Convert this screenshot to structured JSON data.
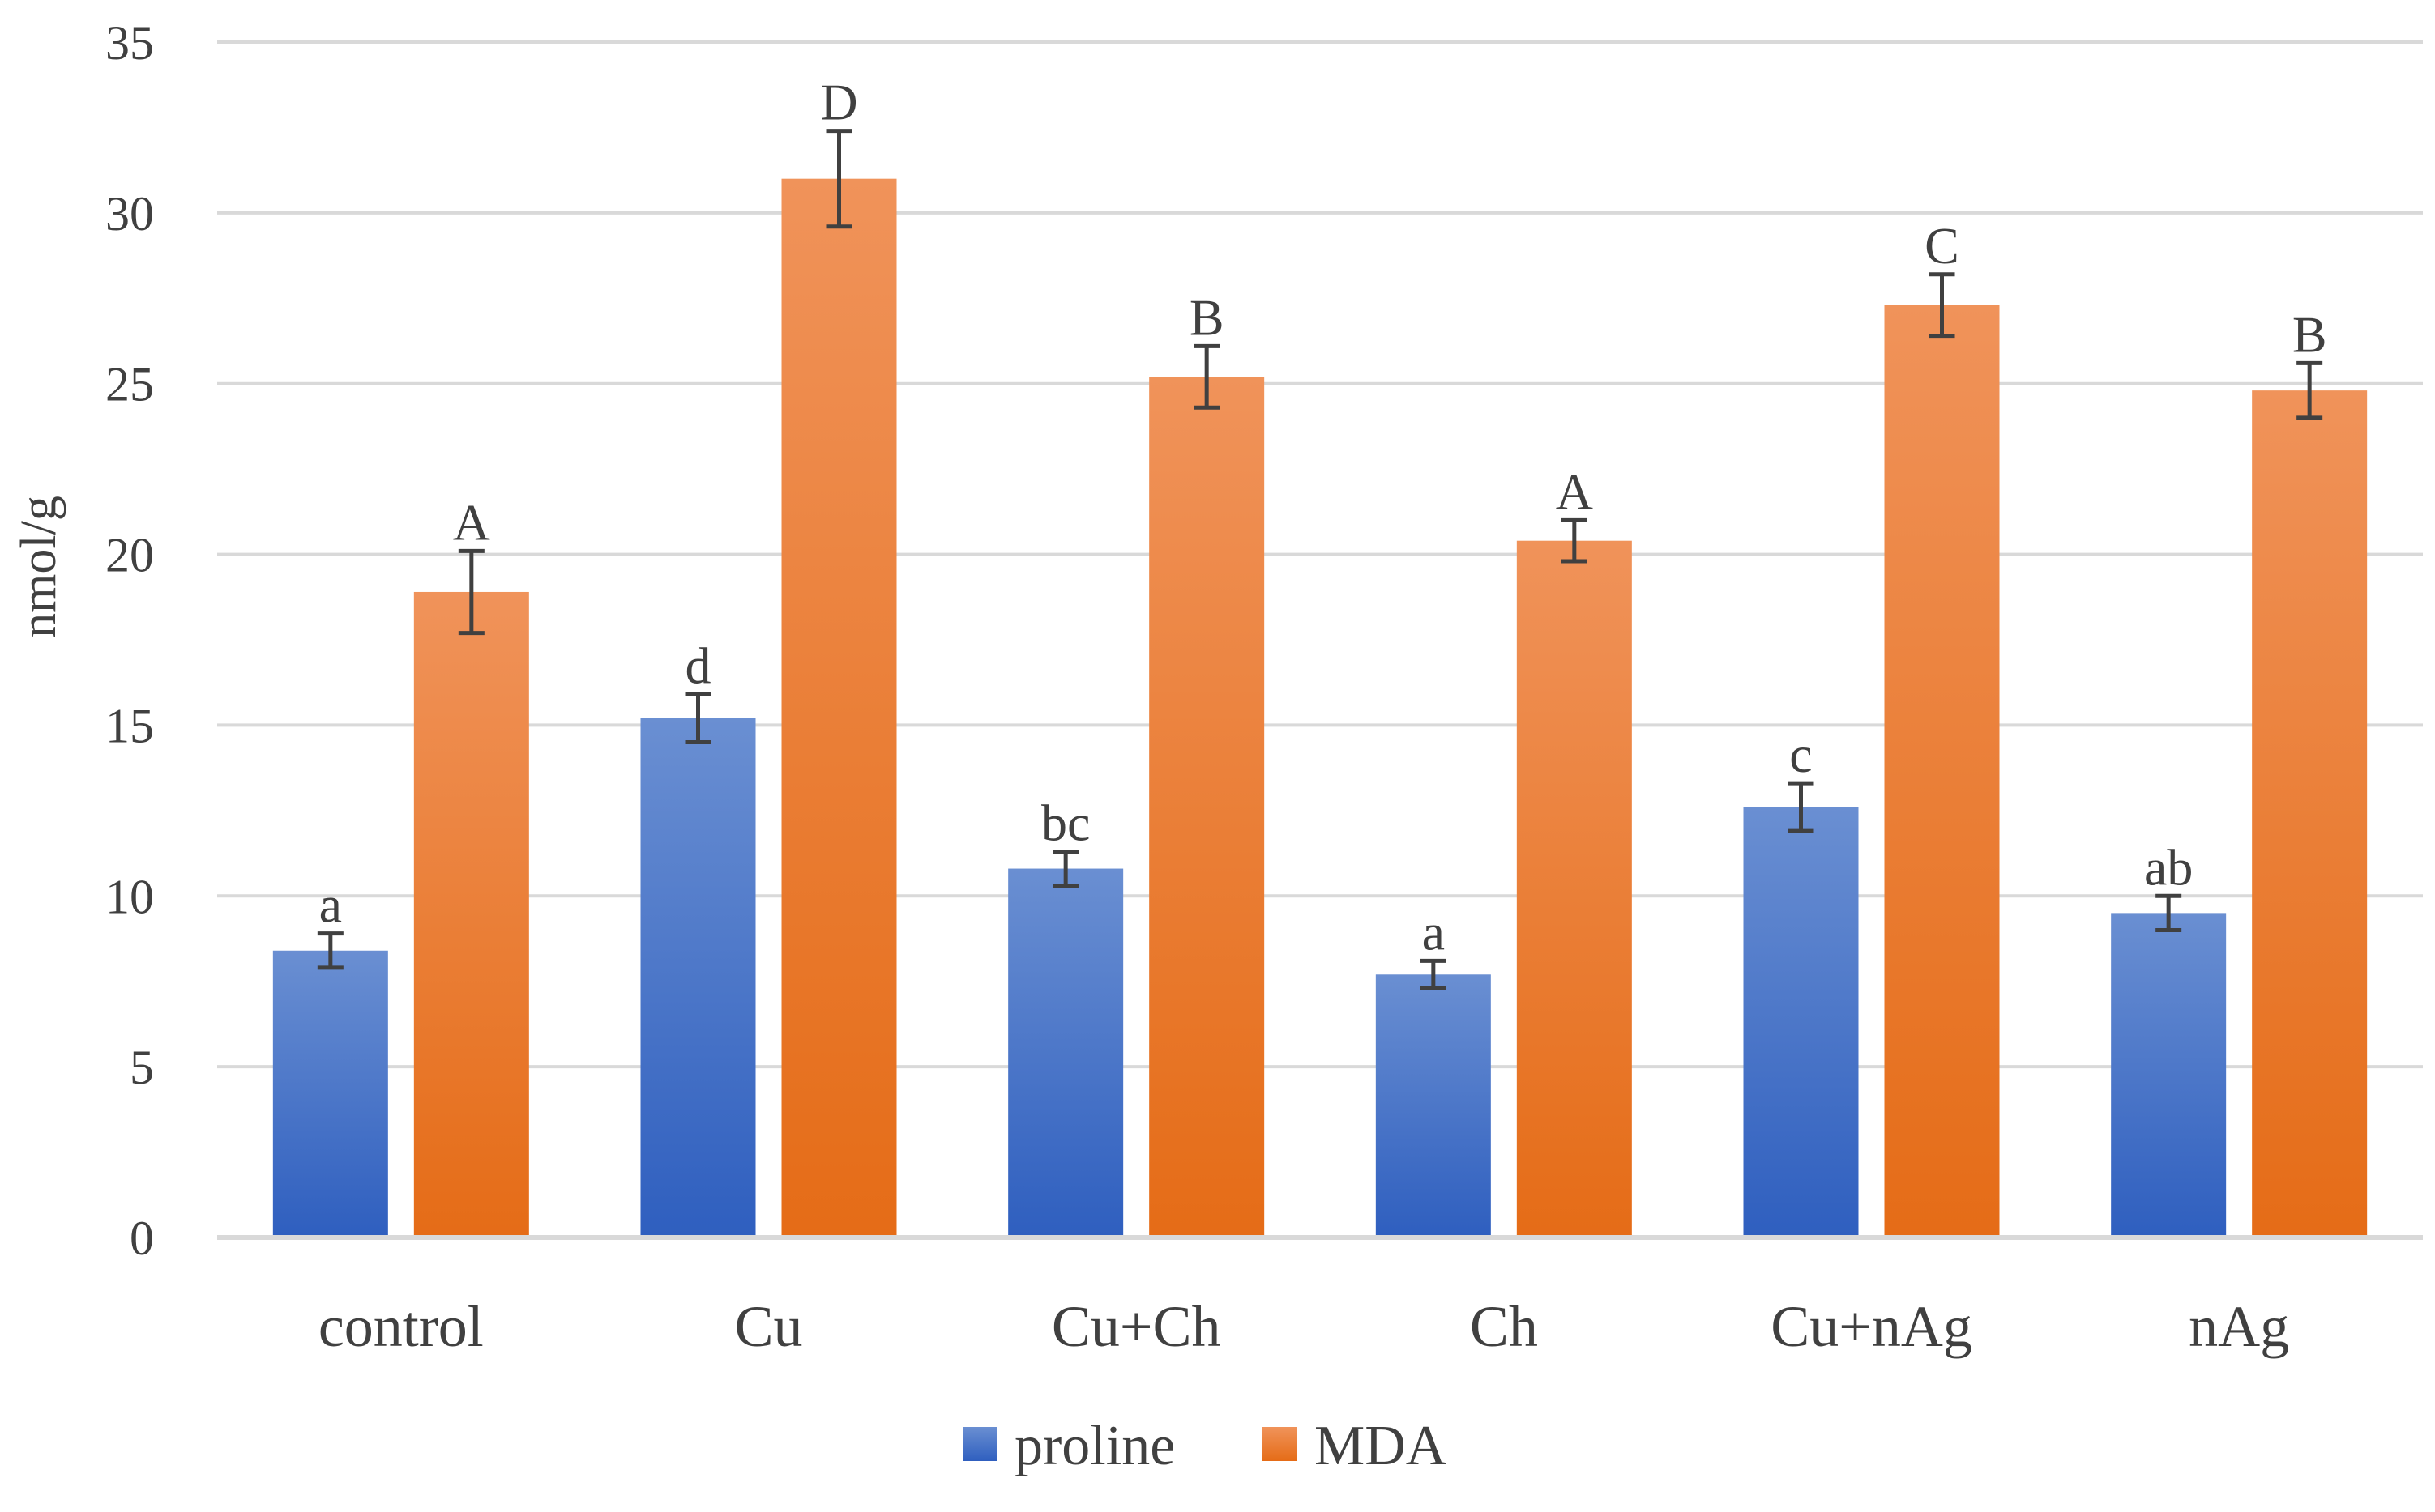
{
  "chart_data": {
    "type": "bar",
    "title": "",
    "xlabel": "",
    "ylabel": "nmol/g",
    "ylim": [
      0,
      35
    ],
    "yticks": [
      0,
      5,
      10,
      15,
      20,
      25,
      30,
      35
    ],
    "grid": true,
    "legend_position": "bottom-center",
    "categories": [
      "control",
      "Cu",
      "Cu+Ch",
      "Ch",
      "Cu+nAg",
      "nAg"
    ],
    "series": [
      {
        "name": "proline",
        "color": "#4472C4",
        "values": [
          8.4,
          15.2,
          10.8,
          7.7,
          12.6,
          9.5
        ],
        "errors": [
          0.5,
          0.7,
          0.5,
          0.4,
          0.7,
          0.5
        ],
        "labels": [
          "a",
          "d",
          "bc",
          "a",
          "c",
          "ab"
        ]
      },
      {
        "name": "MDA",
        "color": "#ED7D31",
        "values": [
          18.9,
          31.0,
          25.2,
          20.4,
          27.3,
          24.8
        ],
        "errors": [
          1.2,
          1.4,
          0.9,
          0.6,
          0.9,
          0.8
        ],
        "labels": [
          "A",
          "D",
          "B",
          "A",
          "C",
          "B"
        ]
      }
    ]
  }
}
